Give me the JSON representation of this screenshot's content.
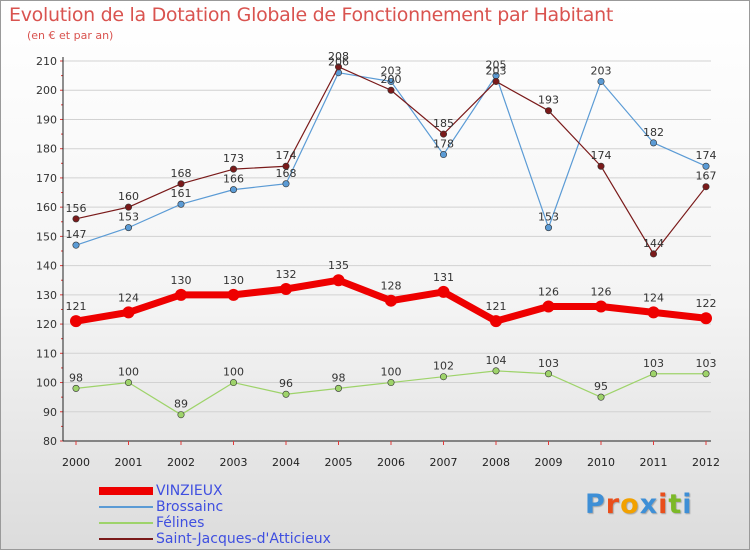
{
  "header": {
    "title": "Evolution de la Dotation Globale de Fonctionnement par Habitant",
    "subtitle": "(en € et par an)"
  },
  "colors": {
    "accent": "#d9534f",
    "legend_text": "#3f4fe0",
    "axis": "#222222",
    "grid": "#d2d2d2"
  },
  "logo": {
    "text": "Proxiti",
    "letters": [
      "P",
      "r",
      "o",
      "x",
      "i",
      "t",
      "i"
    ],
    "letter_colors": [
      "#3e8fd6",
      "#e94e1b",
      "#f2a100",
      "#3e8fd6",
      "#e94e1b",
      "#7cb928",
      "#3e8fd6"
    ]
  },
  "chart_data": {
    "type": "line",
    "title": "Evolution de la Dotation Globale de Fonctionnement par Habitant",
    "subtitle": "(en € et par an)",
    "x": [
      2000,
      2001,
      2002,
      2003,
      2004,
      2005,
      2006,
      2007,
      2008,
      2009,
      2010,
      2011,
      2012
    ],
    "ylim": [
      80,
      210
    ],
    "yticks": [
      80,
      90,
      100,
      110,
      120,
      130,
      140,
      150,
      160,
      170,
      180,
      190,
      200,
      210
    ],
    "grid": true,
    "legend_position": "bottom-left",
    "series": [
      {
        "name": "VINZIEUX",
        "color": "#ee0000",
        "values": [
          121,
          124,
          130,
          130,
          132,
          135,
          128,
          131,
          121,
          126,
          126,
          124,
          122
        ]
      },
      {
        "name": "Brossainc",
        "color": "#5b9bd5",
        "values": [
          147,
          153,
          161,
          166,
          168,
          206,
          203,
          178,
          205,
          153,
          203,
          182,
          174
        ]
      },
      {
        "name": "Félines",
        "color": "#9ed36a",
        "values": [
          98,
          100,
          89,
          100,
          96,
          98,
          100,
          102,
          104,
          103,
          95,
          103,
          103
        ]
      },
      {
        "name": "Saint-Jacques-d'Atticieux",
        "color": "#7a1a1a",
        "values": [
          156,
          160,
          168,
          173,
          174,
          208,
          200,
          185,
          203,
          193,
          174,
          144,
          167
        ]
      }
    ]
  }
}
